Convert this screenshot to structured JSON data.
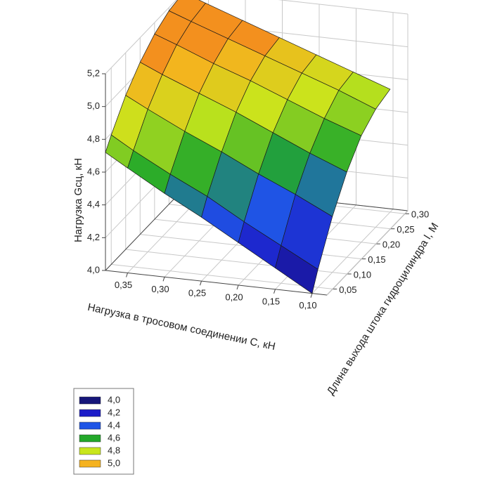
{
  "chart_data": {
    "type": "surface",
    "zlabel": "Нагрузка Gсц, кН",
    "xlabel": "Нагрузка в тросовом соединении С, кН",
    "ylabel": "Длина выхода штока гидроцилиндра l, М",
    "x": [
      0.1,
      0.15,
      0.2,
      0.25,
      0.3,
      0.35,
      0.38
    ],
    "y": [
      0.03,
      0.05,
      0.1,
      0.15,
      0.2,
      0.25,
      0.3
    ],
    "z": [
      [
        4.0,
        4.13,
        4.26,
        4.39,
        4.51,
        4.64,
        4.72
      ],
      [
        4.11,
        4.23,
        4.35,
        4.48,
        4.59,
        4.71,
        4.79
      ],
      [
        4.34,
        4.45,
        4.55,
        4.66,
        4.76,
        4.87,
        4.94
      ],
      [
        4.52,
        4.61,
        4.71,
        4.81,
        4.9,
        4.99,
        5.05
      ],
      [
        4.65,
        4.73,
        4.82,
        4.91,
        4.99,
        5.08,
        5.13
      ],
      [
        4.72,
        4.81,
        4.89,
        4.97,
        5.05,
        5.13,
        5.18
      ],
      [
        4.75,
        4.83,
        4.91,
        4.99,
        5.07,
        5.15,
        5.2
      ]
    ],
    "xlim": [
      0.08,
      0.38
    ],
    "ylim": [
      0.03,
      0.31
    ],
    "zlim": [
      4.0,
      5.2
    ],
    "xticks": [
      {
        "value": 0.35,
        "label": "0,35"
      },
      {
        "value": 0.3,
        "label": "0,30"
      },
      {
        "value": 0.25,
        "label": "0,25"
      },
      {
        "value": 0.2,
        "label": "0,20"
      },
      {
        "value": 0.15,
        "label": "0,15"
      },
      {
        "value": 0.1,
        "label": "0,10"
      }
    ],
    "yticks": [
      {
        "value": 0.05,
        "label": "0,05"
      },
      {
        "value": 0.1,
        "label": "0,10"
      },
      {
        "value": 0.15,
        "label": "0,15"
      },
      {
        "value": 0.2,
        "label": "0,20"
      },
      {
        "value": 0.25,
        "label": "0,25"
      },
      {
        "value": 0.3,
        "label": "0,30"
      }
    ],
    "zticks": [
      {
        "value": 4.0,
        "label": "4,0"
      },
      {
        "value": 4.2,
        "label": "4,2"
      },
      {
        "value": 4.4,
        "label": "4,4"
      },
      {
        "value": 4.6,
        "label": "4,6"
      },
      {
        "value": 4.8,
        "label": "4,8"
      },
      {
        "value": 5.0,
        "label": "5,0"
      },
      {
        "value": 5.2,
        "label": "5,2"
      }
    ],
    "legend": [
      {
        "value": 4.0,
        "label": "4,0",
        "color": "#16167a"
      },
      {
        "value": 4.2,
        "label": "4,2",
        "color": "#1c1cc8"
      },
      {
        "value": 4.4,
        "label": "4,4",
        "color": "#1f55e6"
      },
      {
        "value": 4.6,
        "label": "4,6",
        "color": "#22a82a"
      },
      {
        "value": 4.8,
        "label": "4,8",
        "color": "#c8e61c"
      },
      {
        "value": 5.0,
        "label": "5,0",
        "color": "#f5b21e"
      }
    ]
  }
}
